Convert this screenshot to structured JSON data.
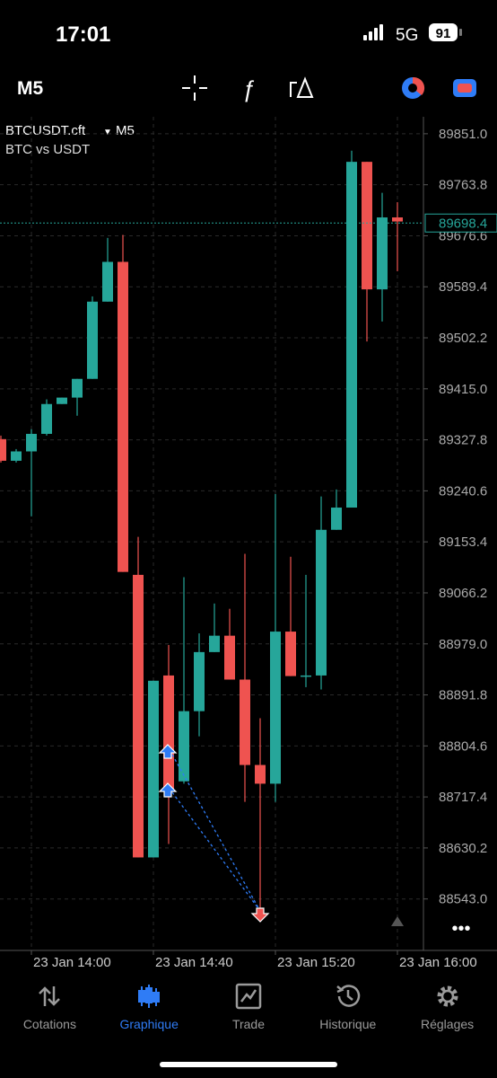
{
  "status": {
    "time": "17:01",
    "network": "5G",
    "battery": "91"
  },
  "toolbar": {
    "timeframe": "M5"
  },
  "chart_data": {
    "type": "candlestick",
    "symbol": "BTCUSDT.cft",
    "timeframe": "M5",
    "subtitle": "BTC vs USDT",
    "categories": [
      null,
      null,
      "23 Jan 14:00",
      null,
      null,
      null,
      null,
      null,
      null,
      null,
      "23 Jan 14:40",
      null,
      null,
      null,
      null,
      null,
      null,
      null,
      "23 Jan 15:20",
      null,
      null,
      null,
      null,
      null,
      null,
      null,
      "23 Jan 16:00"
    ],
    "open": [
      89329,
      89292,
      89308,
      89338,
      89389,
      89400,
      89432,
      89564,
      89632,
      89097,
      88614,
      88925,
      88744,
      88864,
      88965,
      88993,
      88918,
      88772,
      88740,
      89000,
      88924,
      88925,
      89174,
      89212,
      89803,
      89585,
      89708
    ],
    "high": [
      89335,
      89312,
      89346,
      89397,
      89400,
      89432,
      89573,
      89673,
      89678,
      89162,
      88916,
      88977,
      89093,
      88997,
      89048,
      89039,
      89133,
      88852,
      89235,
      89128,
      89097,
      89231,
      89243,
      89822,
      89803,
      89750,
      89734
    ],
    "low": [
      89289,
      89289,
      89197,
      89335,
      89389,
      89369,
      89432,
      89564,
      89102,
      88614,
      88614,
      88637,
      88740,
      88821,
      88965,
      88918,
      88709,
      88514,
      88709,
      88924,
      88905,
      88901,
      89174,
      89212,
      89496,
      89530,
      89616
    ],
    "close": [
      89292,
      89308,
      89338,
      89389,
      89400,
      89432,
      89564,
      89632,
      89102,
      88614,
      88916,
      88729,
      88864,
      88965,
      88993,
      88918,
      88772,
      88740,
      89000,
      88924,
      88925,
      89174,
      89212,
      89803,
      89585,
      89708,
      89701
    ],
    "up_color": "#26a69a",
    "down_color": "#ef5350",
    "current_price": 89698.4,
    "ylim": [
      88455,
      89880
    ],
    "yticks": [
      {
        "value": 89851,
        "label": "89851.0"
      },
      89763.8,
      89676.6,
      89589.4,
      89502.2,
      {
        "value": 89415,
        "label": "89415.0"
      },
      89327.8,
      89240.6,
      89153.4,
      89066.2,
      {
        "value": 88979,
        "label": "88979.0"
      },
      88891.8,
      88804.6,
      88717.4,
      88630.2,
      {
        "value": 88543,
        "label": "88543.0"
      }
    ],
    "grid": true
  },
  "tabs": [
    "Cotations",
    "Graphique",
    "Trade",
    "Historique",
    "Réglages"
  ]
}
